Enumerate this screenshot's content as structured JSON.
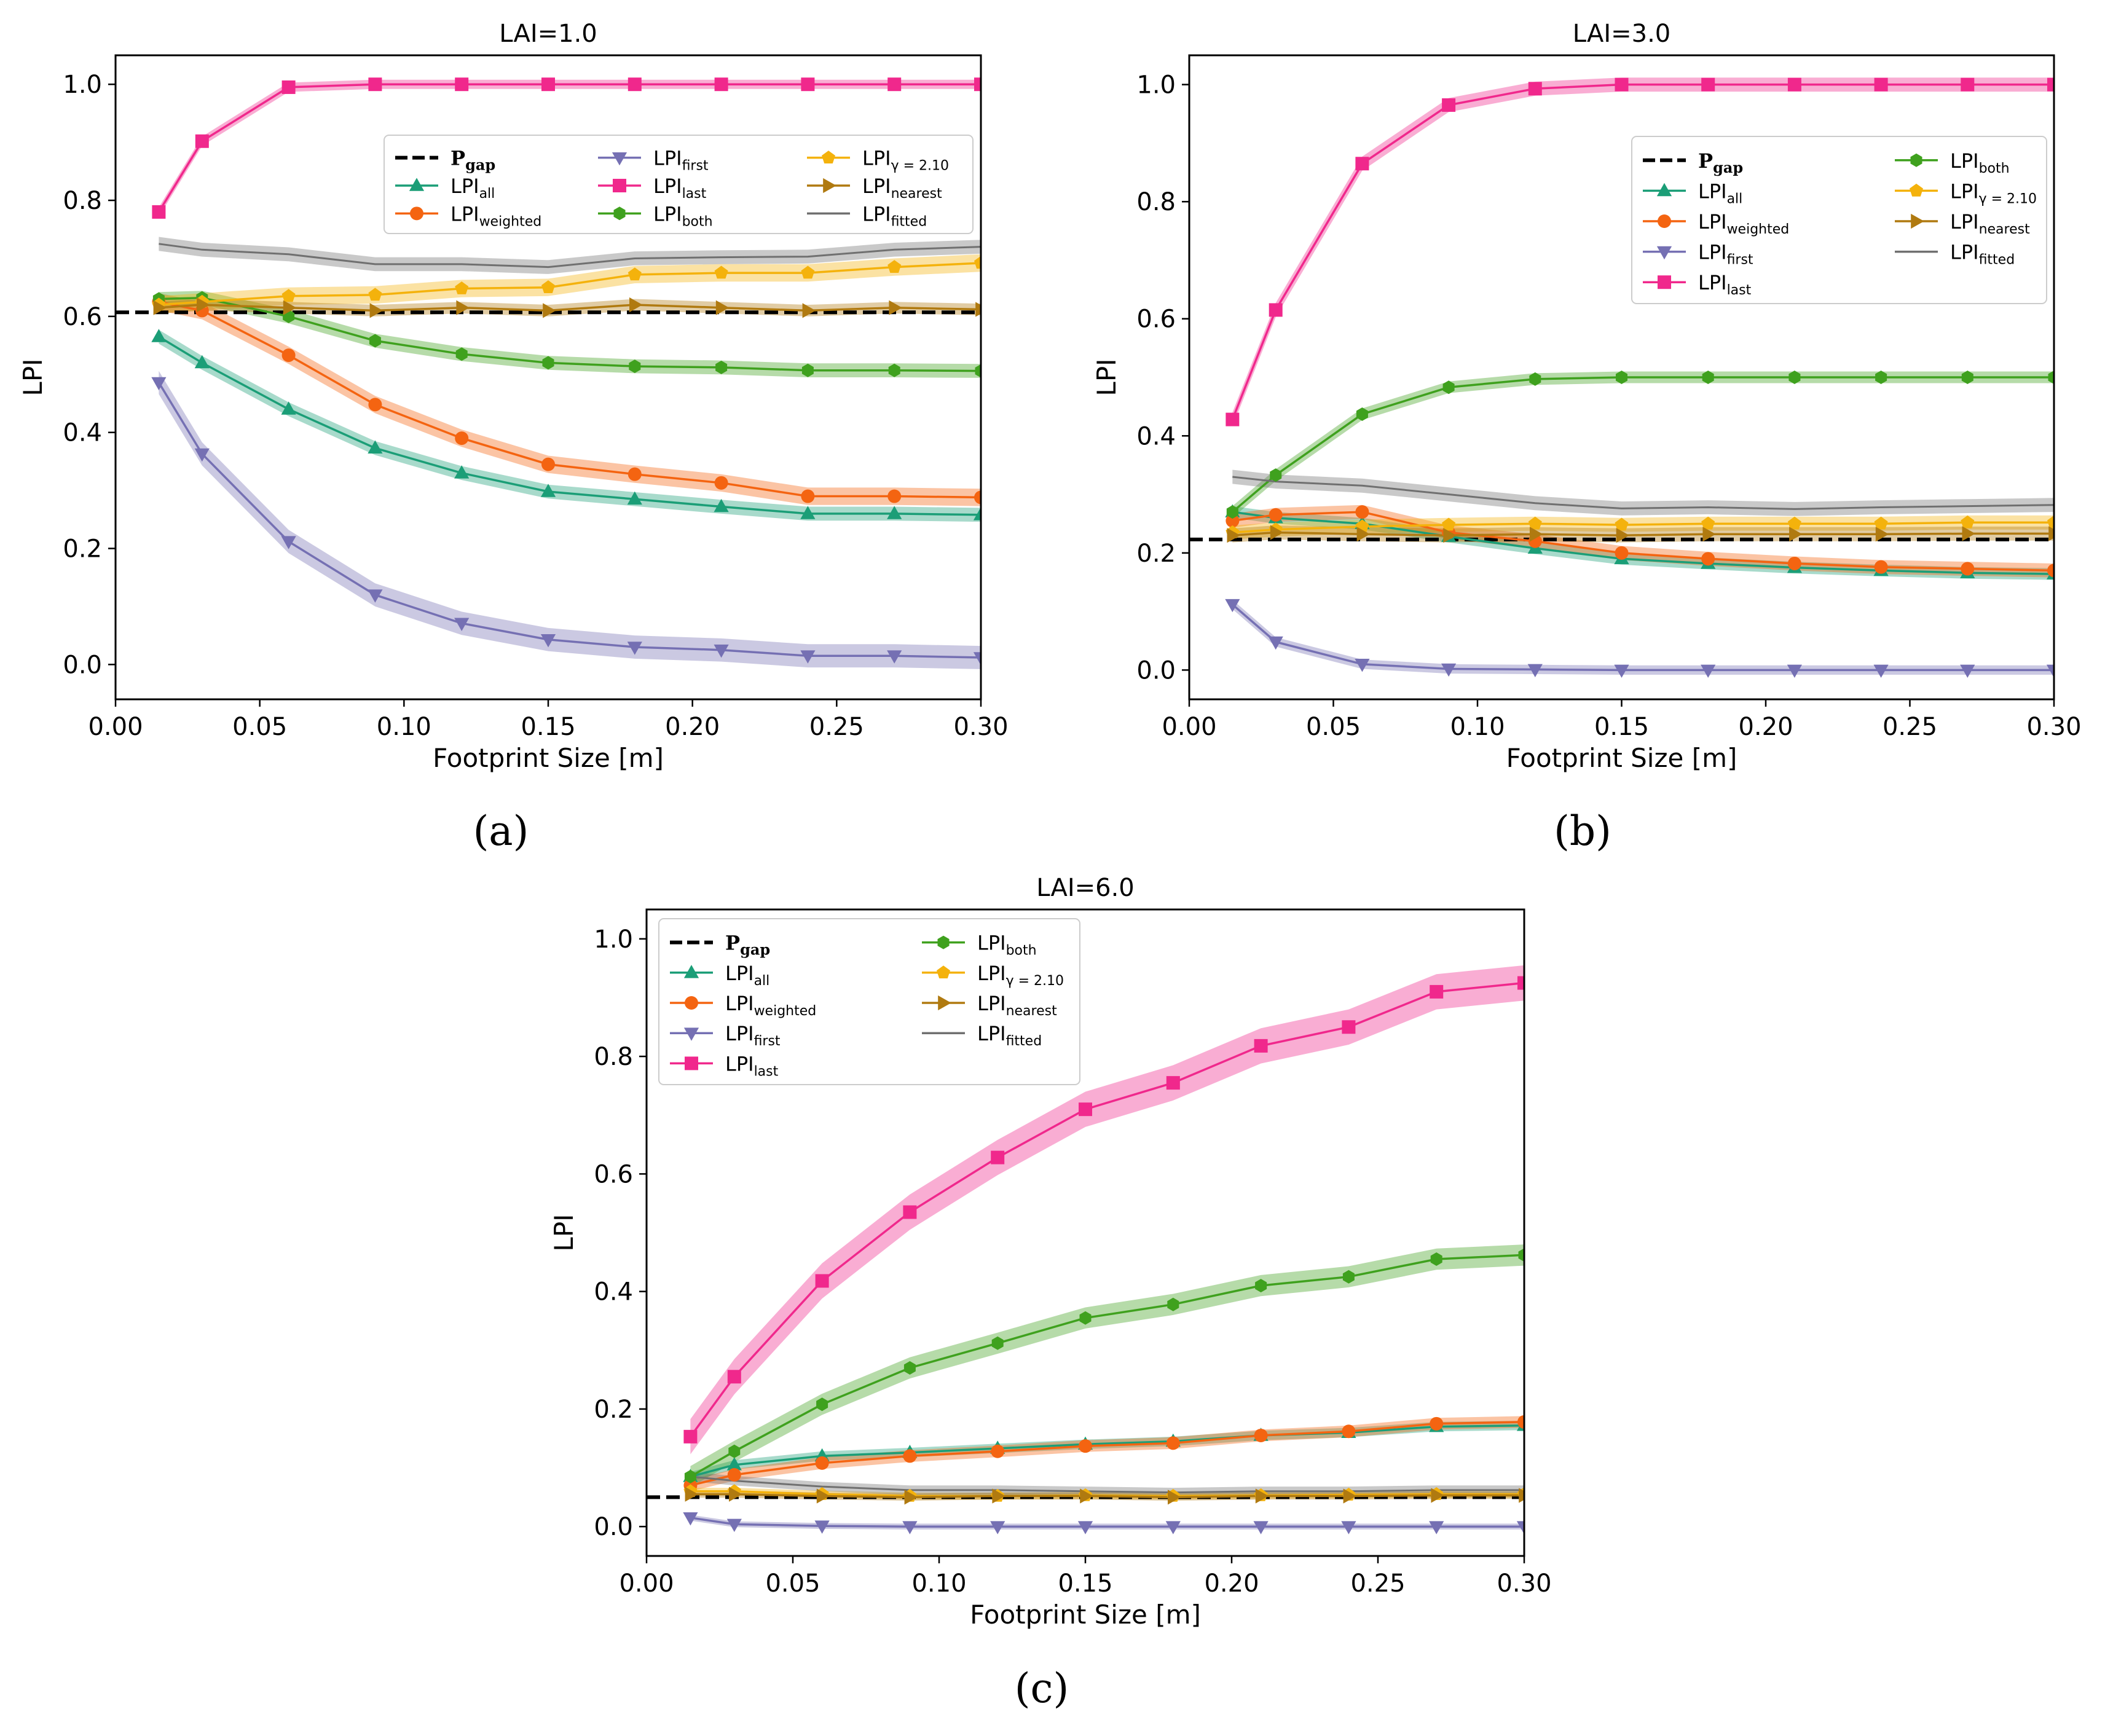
{
  "figure": {
    "captions": [
      "(a)",
      "(b)",
      "(c)"
    ]
  },
  "series_styles": [
    {
      "key": "pgap",
      "color": "#000000",
      "marker": "none",
      "dashed": true
    },
    {
      "key": "all",
      "color": "#1b9e77",
      "marker": "triangle-up"
    },
    {
      "key": "weighted",
      "color": "#f46411",
      "marker": "circle"
    },
    {
      "key": "first",
      "color": "#7570b3",
      "marker": "triangle-down"
    },
    {
      "key": "last",
      "color": "#f0288c",
      "marker": "square"
    },
    {
      "key": "both",
      "color": "#3fa11e",
      "marker": "hexagon"
    },
    {
      "key": "gamma",
      "color": "#f4b20c",
      "marker": "pentagon"
    },
    {
      "key": "nearest",
      "color": "#b07a10",
      "marker": "triangle-right"
    },
    {
      "key": "fitted",
      "color": "#707070",
      "marker": "none"
    }
  ],
  "chart_data": [
    {
      "type": "line",
      "title": "LAI=1.0",
      "xlabel": "Footprint Size [m]",
      "ylabel": "LPI",
      "xlim": [
        0.0,
        0.3
      ],
      "ylim": [
        -0.06,
        1.05
      ],
      "xticks": [
        "0.00",
        "0.05",
        "0.10",
        "0.15",
        "0.20",
        "0.25",
        "0.30"
      ],
      "yticks": [
        "0.0",
        "0.2",
        "0.4",
        "0.6",
        "0.8",
        "1.0"
      ],
      "legend_position": "upper-right",
      "legend_columns": 3,
      "x": [
        0.015,
        0.03,
        0.06,
        0.09,
        0.12,
        0.15,
        0.18,
        0.21,
        0.24,
        0.27,
        0.3
      ],
      "series": [
        {
          "key": "pgap",
          "name": "P",
          "sub": "gap",
          "values": [
            0.607,
            0.607,
            0.607,
            0.607,
            0.607,
            0.607,
            0.607,
            0.607,
            0.607,
            0.607,
            0.607
          ]
        },
        {
          "key": "all",
          "name": "LPI",
          "sub": "all",
          "band": 0.012,
          "values": [
            0.565,
            0.52,
            0.44,
            0.373,
            0.33,
            0.298,
            0.285,
            0.272,
            0.26,
            0.26,
            0.258
          ]
        },
        {
          "key": "weighted",
          "name": "LPI",
          "sub": "weighted",
          "band": 0.015,
          "values": [
            0.625,
            0.61,
            0.533,
            0.448,
            0.39,
            0.345,
            0.328,
            0.313,
            0.29,
            0.29,
            0.288
          ]
        },
        {
          "key": "first",
          "name": "LPI",
          "sub": "first",
          "band": 0.02,
          "values": [
            0.486,
            0.363,
            0.212,
            0.12,
            0.071,
            0.043,
            0.03,
            0.025,
            0.015,
            0.015,
            0.012
          ]
        },
        {
          "key": "last",
          "name": "LPI",
          "sub": "last",
          "band": 0.008,
          "values": [
            0.78,
            0.902,
            0.995,
            1.0,
            1.0,
            1.0,
            1.0,
            1.0,
            1.0,
            1.0,
            1.0
          ]
        },
        {
          "key": "both",
          "name": "LPI",
          "sub": "both",
          "band": 0.012,
          "values": [
            0.63,
            0.632,
            0.6,
            0.558,
            0.535,
            0.52,
            0.514,
            0.512,
            0.507,
            0.507,
            0.506
          ]
        },
        {
          "key": "gamma",
          "name": "LPI",
          "sub": "γ = 2.10",
          "band": 0.015,
          "values": [
            0.62,
            0.625,
            0.635,
            0.637,
            0.648,
            0.65,
            0.672,
            0.675,
            0.675,
            0.685,
            0.692
          ]
        },
        {
          "key": "nearest",
          "name": "LPI",
          "sub": "nearest",
          "band": 0.01,
          "values": [
            0.615,
            0.62,
            0.615,
            0.61,
            0.615,
            0.61,
            0.62,
            0.615,
            0.61,
            0.615,
            0.612
          ]
        },
        {
          "key": "fitted",
          "name": "LPI",
          "sub": "fitted",
          "band": 0.012,
          "values": [
            0.725,
            0.715,
            0.707,
            0.69,
            0.69,
            0.685,
            0.7,
            0.702,
            0.703,
            0.715,
            0.72
          ]
        }
      ]
    },
    {
      "type": "line",
      "title": "LAI=3.0",
      "xlabel": "Footprint Size [m]",
      "ylabel": "LPI",
      "xlim": [
        0.0,
        0.3
      ],
      "ylim": [
        -0.05,
        1.05
      ],
      "xticks": [
        "0.00",
        "0.05",
        "0.10",
        "0.15",
        "0.20",
        "0.25",
        "0.30"
      ],
      "yticks": [
        "0.0",
        "0.2",
        "0.4",
        "0.6",
        "0.8",
        "1.0"
      ],
      "legend_position": "upper-right",
      "legend_columns": 2,
      "x": [
        0.015,
        0.03,
        0.06,
        0.09,
        0.12,
        0.15,
        0.18,
        0.21,
        0.24,
        0.27,
        0.3
      ],
      "series": [
        {
          "key": "pgap",
          "name": "P",
          "sub": "gap",
          "values": [
            0.223,
            0.223,
            0.223,
            0.223,
            0.223,
            0.223,
            0.223,
            0.223,
            0.223,
            0.223,
            0.223
          ]
        },
        {
          "key": "all",
          "name": "LPI",
          "sub": "all",
          "band": 0.01,
          "values": [
            0.27,
            0.26,
            0.25,
            0.228,
            0.208,
            0.19,
            0.182,
            0.175,
            0.17,
            0.166,
            0.164
          ]
        },
        {
          "key": "weighted",
          "name": "LPI",
          "sub": "weighted",
          "band": 0.012,
          "values": [
            0.255,
            0.265,
            0.27,
            0.235,
            0.22,
            0.2,
            0.19,
            0.182,
            0.176,
            0.173,
            0.17
          ]
        },
        {
          "key": "first",
          "name": "LPI",
          "sub": "first",
          "band": 0.008,
          "values": [
            0.112,
            0.048,
            0.01,
            0.002,
            0.001,
            0.0,
            0.0,
            0.0,
            0.0,
            0.0,
            0.0
          ]
        },
        {
          "key": "last",
          "name": "LPI",
          "sub": "last",
          "band": 0.012,
          "values": [
            0.428,
            0.615,
            0.865,
            0.965,
            0.993,
            1.0,
            1.0,
            1.0,
            1.0,
            1.0,
            1.0
          ]
        },
        {
          "key": "both",
          "name": "LPI",
          "sub": "both",
          "band": 0.01,
          "values": [
            0.27,
            0.333,
            0.437,
            0.483,
            0.497,
            0.5,
            0.5,
            0.5,
            0.5,
            0.5,
            0.5
          ]
        },
        {
          "key": "gamma",
          "name": "LPI",
          "sub": "γ = 2.10",
          "band": 0.012,
          "values": [
            0.235,
            0.24,
            0.245,
            0.248,
            0.25,
            0.248,
            0.25,
            0.25,
            0.25,
            0.252,
            0.252
          ]
        },
        {
          "key": "nearest",
          "name": "LPI",
          "sub": "nearest",
          "band": 0.012,
          "values": [
            0.23,
            0.235,
            0.232,
            0.23,
            0.232,
            0.23,
            0.232,
            0.232,
            0.232,
            0.233,
            0.233
          ]
        },
        {
          "key": "fitted",
          "name": "LPI",
          "sub": "fitted",
          "band": 0.012,
          "values": [
            0.33,
            0.322,
            0.315,
            0.3,
            0.285,
            0.276,
            0.278,
            0.275,
            0.278,
            0.28,
            0.282
          ]
        }
      ]
    },
    {
      "type": "line",
      "title": "LAI=6.0",
      "xlabel": "Footprint Size [m]",
      "ylabel": "LPI",
      "xlim": [
        0.0,
        0.3
      ],
      "ylim": [
        -0.05,
        1.05
      ],
      "xticks": [
        "0.00",
        "0.05",
        "0.10",
        "0.15",
        "0.20",
        "0.25",
        "0.30"
      ],
      "yticks": [
        "0.0",
        "0.2",
        "0.4",
        "0.6",
        "0.8",
        "1.0"
      ],
      "legend_position": "upper-left",
      "legend_columns": 2,
      "x": [
        0.015,
        0.03,
        0.06,
        0.09,
        0.12,
        0.15,
        0.18,
        0.21,
        0.24,
        0.27,
        0.3
      ],
      "series": [
        {
          "key": "pgap",
          "name": "P",
          "sub": "gap",
          "values": [
            0.05,
            0.05,
            0.05,
            0.05,
            0.05,
            0.05,
            0.05,
            0.05,
            0.05,
            0.05,
            0.05
          ]
        },
        {
          "key": "all",
          "name": "LPI",
          "sub": "all",
          "band": 0.008,
          "values": [
            0.085,
            0.105,
            0.12,
            0.126,
            0.133,
            0.14,
            0.145,
            0.155,
            0.16,
            0.17,
            0.172
          ]
        },
        {
          "key": "weighted",
          "name": "LPI",
          "sub": "weighted",
          "band": 0.01,
          "values": [
            0.07,
            0.088,
            0.108,
            0.12,
            0.128,
            0.137,
            0.142,
            0.155,
            0.162,
            0.175,
            0.178
          ]
        },
        {
          "key": "first",
          "name": "LPI",
          "sub": "first",
          "band": 0.005,
          "values": [
            0.015,
            0.004,
            0.001,
            0.0,
            0.0,
            0.0,
            0.0,
            0.0,
            0.0,
            0.0,
            0.0
          ]
        },
        {
          "key": "last",
          "name": "LPI",
          "sub": "last",
          "band": 0.03,
          "values": [
            0.153,
            0.255,
            0.418,
            0.535,
            0.628,
            0.71,
            0.755,
            0.818,
            0.85,
            0.91,
            0.925
          ]
        },
        {
          "key": "both",
          "name": "LPI",
          "sub": "both",
          "band": 0.018,
          "values": [
            0.085,
            0.128,
            0.208,
            0.27,
            0.312,
            0.355,
            0.378,
            0.41,
            0.425,
            0.455,
            0.462
          ]
        },
        {
          "key": "gamma",
          "name": "LPI",
          "sub": "γ = 2.10",
          "band": 0.006,
          "values": [
            0.06,
            0.06,
            0.055,
            0.052,
            0.052,
            0.053,
            0.052,
            0.053,
            0.054,
            0.055,
            0.055
          ]
        },
        {
          "key": "nearest",
          "name": "LPI",
          "sub": "nearest",
          "band": 0.006,
          "values": [
            0.055,
            0.055,
            0.052,
            0.05,
            0.052,
            0.052,
            0.05,
            0.052,
            0.052,
            0.053,
            0.053
          ]
        },
        {
          "key": "fitted",
          "name": "LPI",
          "sub": "fitted",
          "band": 0.008,
          "values": [
            0.085,
            0.078,
            0.068,
            0.062,
            0.062,
            0.06,
            0.058,
            0.06,
            0.06,
            0.062,
            0.062
          ]
        }
      ]
    }
  ]
}
